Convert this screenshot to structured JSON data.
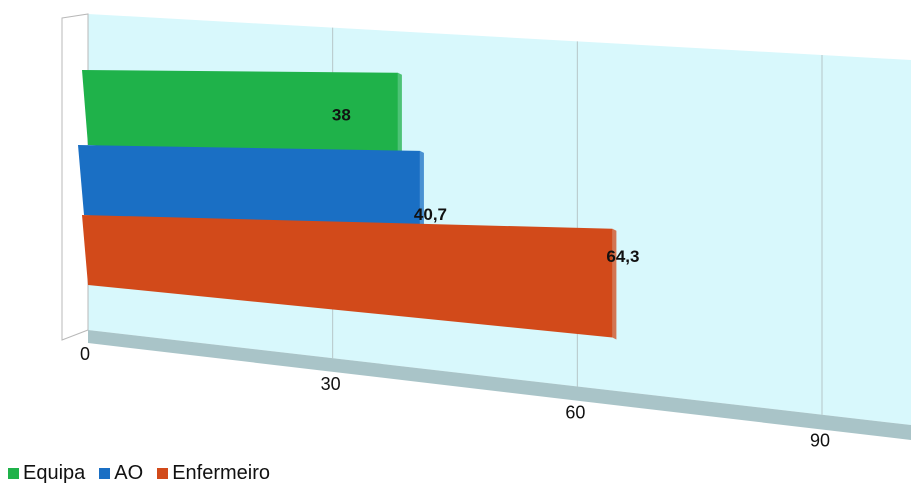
{
  "chart_data": {
    "type": "bar",
    "orientation": "horizontal",
    "title": "",
    "xlabel": "",
    "ylabel": "",
    "xlim": [
      0,
      90
    ],
    "ticks": [
      "0",
      "30",
      "60",
      "90"
    ],
    "grid": true,
    "legend_position": "bottom-left",
    "series": [
      {
        "name": "Equipa",
        "value": 38,
        "label": "38",
        "color": "#1fb24a"
      },
      {
        "name": "AO",
        "value": 40.7,
        "label": "40,7",
        "color": "#1a6fc4"
      },
      {
        "name": "Enfermeiro",
        "value": 64.3,
        "label": "64,3",
        "color": "#d24a1a"
      }
    ],
    "colors": {
      "plot_background": "#d8f8fc",
      "floor": "#a9c4c8",
      "grid": "#b6c6c8"
    }
  }
}
